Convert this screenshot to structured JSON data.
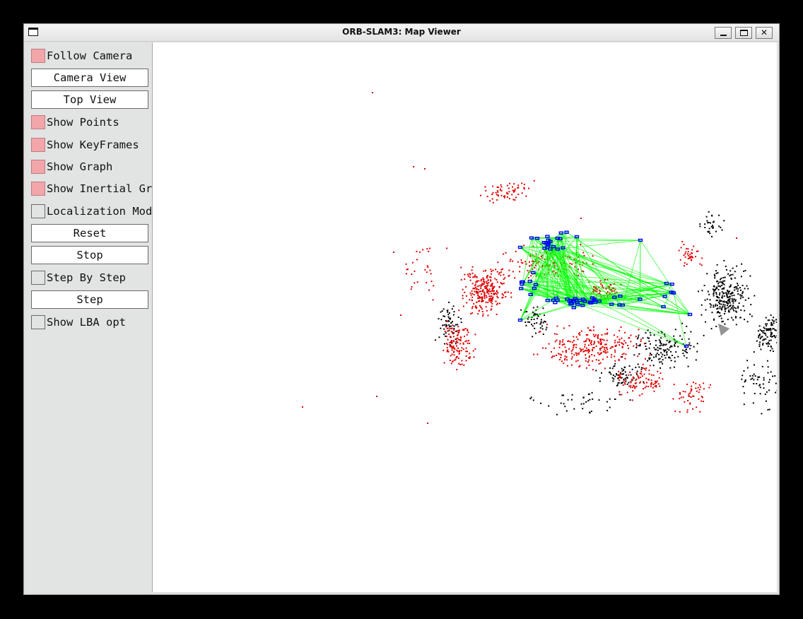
{
  "window": {
    "title": "ORB-SLAM3: Map Viewer",
    "controls": {
      "minimize": "_",
      "close": "✕"
    }
  },
  "panel": {
    "follow_camera": {
      "label": "Follow Camera",
      "checked": true
    },
    "camera_view": {
      "label": "Camera View"
    },
    "top_view": {
      "label": "Top View"
    },
    "show_points": {
      "label": "Show Points",
      "checked": true
    },
    "show_keyframes": {
      "label": "Show KeyFrames",
      "checked": true
    },
    "show_graph": {
      "label": "Show Graph",
      "checked": true
    },
    "show_inertial_graph": {
      "label": "Show Inertial Graph",
      "checked": true
    },
    "localization_mode": {
      "label": "Localization Mode",
      "checked": false
    },
    "reset": {
      "label": "Reset"
    },
    "stop": {
      "label": "Stop"
    },
    "step_by_step": {
      "label": "Step By Step",
      "checked": false
    },
    "step": {
      "label": "Step"
    },
    "show_lba_opt": {
      "label": "Show LBA opt",
      "checked": false
    }
  },
  "viewer": {
    "colors": {
      "map_points": "#000000",
      "reference_points": "#e00000",
      "keyframes": "#0000ff",
      "covisibility_graph": "#00ff00"
    }
  }
}
